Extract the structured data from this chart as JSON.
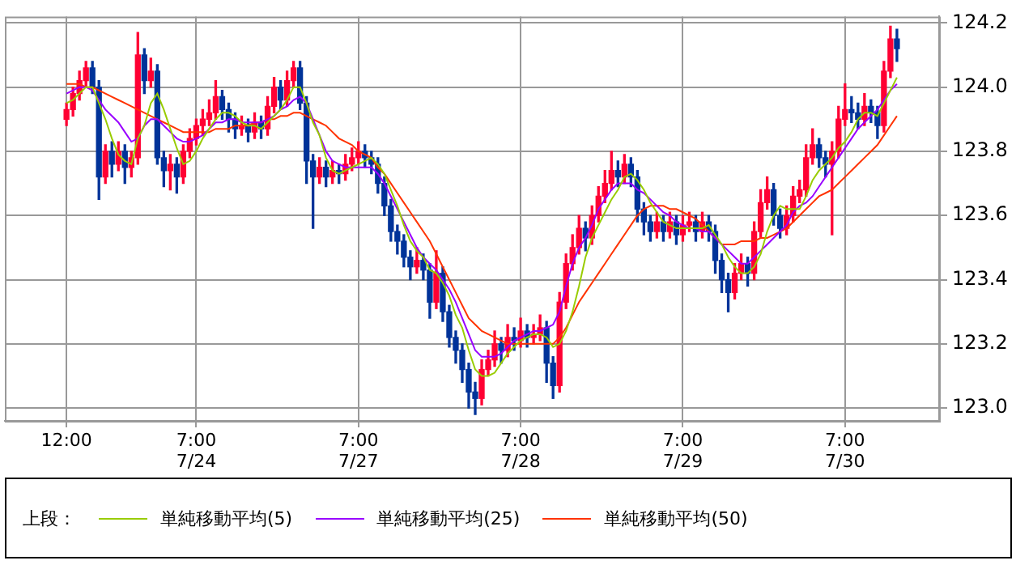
{
  "chart_data": {
    "type": "candlestick",
    "legend_title": "上段：",
    "legend": "bottom",
    "grid": true,
    "marker": "none",
    "categories": [
      null,
      null,
      null,
      null,
      null,
      null,
      null,
      null,
      null,
      "12:00",
      null,
      null,
      null,
      null,
      null,
      null,
      null,
      null,
      null,
      null,
      null,
      null,
      null,
      null,
      null,
      null,
      null,
      null,
      null,
      "7:00\n7/24",
      null,
      null,
      null,
      null,
      null,
      null,
      null,
      null,
      null,
      null,
      null,
      null,
      null,
      null,
      null,
      null,
      null,
      null,
      null,
      null,
      null,
      null,
      null,
      null,
      "7:00\n7/27",
      null,
      null,
      null,
      null,
      null,
      null,
      null,
      null,
      null,
      null,
      null,
      null,
      null,
      null,
      null,
      null,
      null,
      null,
      null,
      null,
      null,
      null,
      null,
      null,
      "7:00\n7/28",
      null,
      null,
      null,
      null,
      null,
      null,
      null,
      null,
      null,
      null,
      null,
      null,
      null,
      null,
      null,
      null,
      null,
      null,
      null,
      null,
      null,
      null,
      null,
      null,
      "7:00\n7/29",
      null,
      null,
      null,
      null,
      null,
      null,
      null,
      null,
      null,
      null,
      null,
      null,
      null,
      null,
      null,
      null,
      null,
      null,
      null,
      null,
      null,
      null,
      null,
      null,
      "7:00\n7/30",
      null,
      null,
      null,
      null,
      null,
      null,
      null,
      null,
      null,
      null,
      null,
      null,
      null,
      null
    ],
    "ylim": [
      122.96,
      124.22
    ],
    "yticks": [
      {
        "value": 123,
        "label": "123.0"
      },
      {
        "value": 123.2,
        "label": "123.2"
      },
      {
        "value": 123.4,
        "label": "123.4"
      },
      {
        "value": 123.6,
        "label": "123.6"
      },
      {
        "value": 123.8,
        "label": "123.8"
      },
      {
        "value": 124,
        "label": "124.0"
      },
      {
        "value": 124.2,
        "label": "124.2"
      }
    ],
    "ohlc": [
      null,
      null,
      null,
      null,
      null,
      null,
      null,
      null,
      null,
      [
        123.9,
        123.95,
        123.88,
        123.93
      ],
      [
        123.93,
        124.0,
        123.91,
        123.98
      ],
      [
        123.98,
        124.05,
        123.96,
        124.02
      ],
      [
        124.02,
        124.08,
        124.0,
        124.06
      ],
      [
        124.06,
        124.08,
        123.98,
        124.0
      ],
      [
        124.0,
        124.02,
        123.65,
        123.72
      ],
      [
        123.72,
        123.82,
        123.7,
        123.8
      ],
      [
        123.8,
        123.83,
        123.72,
        123.76
      ],
      [
        123.76,
        123.83,
        123.74,
        123.8
      ],
      [
        123.8,
        123.82,
        123.7,
        123.75
      ],
      [
        123.75,
        123.8,
        123.72,
        123.78
      ],
      [
        123.78,
        124.17,
        123.76,
        124.1
      ],
      [
        124.1,
        124.12,
        123.98,
        124.02
      ],
      [
        124.02,
        124.09,
        124.0,
        124.05
      ],
      [
        124.05,
        124.07,
        123.76,
        123.78
      ],
      [
        123.78,
        123.8,
        123.69,
        123.74
      ],
      [
        123.74,
        123.79,
        123.68,
        123.76
      ],
      [
        123.76,
        123.78,
        123.67,
        123.72
      ],
      [
        123.72,
        123.82,
        123.7,
        123.8
      ],
      [
        123.8,
        123.87,
        123.78,
        123.84
      ],
      [
        123.84,
        123.9,
        123.82,
        123.88
      ],
      [
        123.88,
        123.93,
        123.85,
        123.9
      ],
      [
        123.9,
        123.96,
        123.88,
        123.92
      ],
      [
        123.92,
        124.02,
        123.9,
        123.97
      ],
      [
        123.97,
        123.99,
        123.9,
        123.93
      ],
      [
        123.93,
        123.95,
        123.86,
        123.9
      ],
      [
        123.9,
        123.92,
        123.84,
        123.87
      ],
      [
        123.87,
        123.91,
        123.85,
        123.88
      ],
      [
        123.88,
        123.9,
        123.83,
        123.86
      ],
      [
        123.86,
        123.92,
        123.84,
        123.89
      ],
      [
        123.89,
        123.91,
        123.84,
        123.87
      ],
      [
        123.87,
        123.97,
        123.85,
        123.94
      ],
      [
        123.94,
        124.03,
        123.92,
        124.0
      ],
      [
        124.0,
        124.02,
        123.93,
        123.96
      ],
      [
        123.96,
        124.05,
        123.94,
        124.02
      ],
      [
        124.02,
        124.08,
        124.0,
        124.06
      ],
      [
        124.06,
        124.08,
        123.93,
        123.95
      ],
      [
        123.95,
        123.97,
        123.7,
        123.77
      ],
      [
        123.77,
        123.79,
        123.56,
        123.72
      ],
      [
        123.72,
        123.78,
        123.7,
        123.75
      ],
      [
        123.75,
        123.77,
        123.69,
        123.72
      ],
      [
        123.72,
        123.77,
        123.7,
        123.74
      ],
      [
        123.74,
        123.76,
        123.7,
        123.73
      ],
      [
        123.73,
        123.79,
        123.71,
        123.76
      ],
      [
        123.76,
        123.81,
        123.74,
        123.78
      ],
      [
        123.78,
        123.83,
        123.76,
        123.8
      ],
      [
        123.8,
        123.82,
        123.75,
        123.78
      ],
      [
        123.78,
        123.8,
        123.73,
        123.76
      ],
      [
        123.76,
        123.78,
        123.67,
        123.7
      ],
      [
        123.7,
        123.72,
        123.6,
        123.63
      ],
      [
        123.63,
        123.65,
        123.52,
        123.55
      ],
      [
        123.55,
        123.57,
        123.48,
        123.52
      ],
      [
        123.52,
        123.54,
        123.44,
        123.47
      ],
      [
        123.47,
        123.49,
        123.4,
        123.44
      ],
      [
        123.44,
        123.5,
        123.42,
        123.46
      ],
      [
        123.46,
        123.48,
        123.4,
        123.43
      ],
      [
        123.43,
        123.45,
        123.28,
        123.33
      ],
      [
        123.33,
        123.49,
        123.31,
        123.42
      ],
      [
        123.42,
        123.44,
        123.27,
        123.3
      ],
      [
        123.3,
        123.32,
        123.19,
        123.22
      ],
      [
        123.22,
        123.24,
        123.14,
        123.18
      ],
      [
        123.18,
        123.2,
        123.08,
        123.12
      ],
      [
        123.12,
        123.14,
        123.0,
        123.05
      ],
      [
        123.05,
        123.08,
        122.98,
        123.03
      ],
      [
        123.03,
        123.15,
        123.01,
        123.12
      ],
      [
        123.12,
        123.18,
        123.1,
        123.15
      ],
      [
        123.15,
        123.24,
        123.13,
        123.2
      ],
      [
        123.2,
        123.22,
        123.14,
        123.18
      ],
      [
        123.18,
        123.26,
        123.16,
        123.22
      ],
      [
        123.22,
        123.25,
        123.18,
        123.21
      ],
      [
        123.21,
        123.28,
        123.19,
        123.24
      ],
      [
        123.24,
        123.26,
        123.19,
        123.22
      ],
      [
        123.22,
        123.26,
        123.2,
        123.23
      ],
      [
        123.23,
        123.29,
        123.21,
        123.25
      ],
      [
        123.25,
        123.27,
        123.08,
        123.14
      ],
      [
        123.14,
        123.16,
        123.03,
        123.07
      ],
      [
        123.07,
        123.36,
        123.05,
        123.33
      ],
      [
        123.33,
        123.48,
        123.31,
        123.45
      ],
      [
        123.45,
        123.54,
        123.43,
        123.5
      ],
      [
        123.5,
        123.6,
        123.48,
        123.56
      ],
      [
        123.56,
        123.58,
        123.49,
        123.53
      ],
      [
        123.53,
        123.63,
        123.51,
        123.6
      ],
      [
        123.6,
        123.69,
        123.58,
        123.66
      ],
      [
        123.66,
        123.74,
        123.64,
        123.7
      ],
      [
        123.7,
        123.8,
        123.68,
        123.74
      ],
      [
        123.74,
        123.77,
        123.69,
        123.72
      ],
      [
        123.72,
        123.79,
        123.7,
        123.76
      ],
      [
        123.76,
        123.78,
        123.69,
        123.72
      ],
      [
        123.72,
        123.74,
        123.58,
        123.62
      ],
      [
        123.62,
        123.64,
        123.54,
        123.58
      ],
      [
        123.58,
        123.6,
        123.52,
        123.55
      ],
      [
        123.55,
        123.61,
        123.53,
        123.58
      ],
      [
        123.58,
        123.6,
        123.52,
        123.55
      ],
      [
        123.55,
        123.61,
        123.53,
        123.58
      ],
      [
        123.58,
        123.6,
        123.51,
        123.54
      ],
      [
        123.54,
        123.6,
        123.52,
        123.57
      ],
      [
        123.57,
        123.61,
        123.55,
        123.58
      ],
      [
        123.58,
        123.6,
        123.52,
        123.55
      ],
      [
        123.55,
        123.61,
        123.53,
        123.58
      ],
      [
        123.58,
        123.6,
        123.52,
        123.55
      ],
      [
        123.55,
        123.57,
        123.42,
        123.46
      ],
      [
        123.46,
        123.48,
        123.36,
        123.4
      ],
      [
        123.4,
        123.42,
        123.3,
        123.36
      ],
      [
        123.36,
        123.45,
        123.34,
        123.42
      ],
      [
        123.42,
        123.48,
        123.4,
        123.45
      ],
      [
        123.45,
        123.47,
        123.38,
        123.42
      ],
      [
        123.42,
        123.58,
        123.4,
        123.55
      ],
      [
        123.55,
        123.68,
        123.53,
        123.64
      ],
      [
        123.64,
        123.72,
        123.62,
        123.68
      ],
      [
        123.68,
        123.7,
        123.57,
        123.6
      ],
      [
        123.6,
        123.62,
        123.53,
        123.56
      ],
      [
        123.56,
        123.63,
        123.54,
        123.6
      ],
      [
        123.6,
        123.69,
        123.58,
        123.66
      ],
      [
        123.66,
        123.71,
        123.64,
        123.68
      ],
      [
        123.68,
        123.82,
        123.66,
        123.78
      ],
      [
        123.78,
        123.87,
        123.76,
        123.82
      ],
      [
        123.82,
        123.84,
        123.75,
        123.78
      ],
      [
        123.78,
        123.8,
        123.72,
        123.76
      ],
      [
        123.76,
        123.83,
        123.54,
        123.8
      ],
      [
        123.8,
        123.94,
        123.78,
        123.9
      ],
      [
        123.9,
        124.01,
        123.88,
        123.93
      ],
      [
        123.93,
        123.97,
        123.89,
        123.92
      ],
      [
        123.92,
        123.95,
        123.87,
        123.9
      ],
      [
        123.9,
        123.98,
        123.88,
        123.94
      ],
      [
        123.94,
        123.96,
        123.89,
        123.92
      ],
      [
        123.92,
        123.94,
        123.84,
        123.88
      ],
      [
        123.88,
        124.08,
        123.86,
        124.05
      ],
      [
        124.05,
        124.19,
        124.03,
        124.15
      ],
      [
        124.15,
        124.18,
        124.08,
        124.12
      ],
      null,
      null,
      null,
      null,
      null,
      null
    ],
    "colors": [
      null,
      null,
      null,
      null,
      null,
      null,
      null,
      null,
      null,
      "#ff0033",
      "#ff0033",
      "#ff0033",
      "#ff0033",
      "#003399",
      "#003399",
      "#ff0033",
      "#003399",
      "#ff0033",
      "#003399",
      "#ff0033",
      "#ff0033",
      "#003399",
      "#ff0033",
      "#003399",
      "#003399",
      "#ff0033",
      "#003399",
      "#ff0033",
      "#ff0033",
      "#ff0033",
      "#ff0033",
      "#ff0033",
      "#ff0033",
      "#003399",
      "#003399",
      "#003399",
      "#ff0033",
      "#003399",
      "#ff0033",
      "#003399",
      "#ff0033",
      "#ff0033",
      "#003399",
      "#ff0033",
      "#ff0033",
      "#003399",
      "#003399",
      "#003399",
      "#ff0033",
      "#003399",
      "#ff0033",
      "#003399",
      "#ff0033",
      "#ff0033",
      "#ff0033",
      "#003399",
      "#003399",
      "#003399",
      "#003399",
      "#003399",
      "#003399",
      "#003399",
      "#003399",
      "#ff0033",
      "#003399",
      "#003399",
      "#ff0033",
      "#003399",
      "#003399",
      "#003399",
      "#003399",
      "#003399",
      "#003399",
      "#ff0033",
      "#ff0033",
      "#ff0033",
      "#003399",
      "#ff0033",
      "#003399",
      "#ff0033",
      "#003399",
      "#ff0033",
      "#ff0033",
      "#003399",
      "#003399",
      "#ff0033",
      "#ff0033",
      "#ff0033",
      "#ff0033",
      "#003399",
      "#ff0033",
      "#ff0033",
      "#ff0033",
      "#ff0033",
      "#003399",
      "#ff0033",
      "#003399",
      "#003399",
      "#003399",
      "#003399",
      "#ff0033",
      "#003399",
      "#ff0033",
      "#003399",
      "#ff0033",
      "#ff0033",
      "#003399",
      "#ff0033",
      "#003399",
      "#003399",
      "#003399",
      "#003399",
      "#ff0033",
      "#ff0033",
      "#003399",
      "#ff0033",
      "#ff0033",
      "#ff0033",
      "#003399",
      "#003399",
      "#ff0033",
      "#ff0033",
      "#ff0033",
      "#ff0033",
      "#ff0033",
      "#003399",
      "#003399",
      "#ff0033",
      "#ff0033",
      "#ff0033",
      "#003399",
      "#003399",
      "#ff0033",
      "#003399",
      "#003399",
      "#ff0033",
      "#ff0033",
      "#003399",
      null,
      null,
      null,
      null,
      null,
      null
    ],
    "series": [
      {
        "name": "単純移動平均(5)",
        "type": "line",
        "color": "#99cc00",
        "values": [
          null,
          null,
          null,
          null,
          null,
          null,
          null,
          null,
          null,
          123.95,
          123.96,
          123.98,
          124.0,
          124.0,
          123.95,
          123.9,
          123.84,
          123.79,
          123.77,
          123.76,
          123.84,
          123.88,
          123.95,
          123.98,
          123.93,
          123.87,
          123.81,
          123.76,
          123.77,
          123.8,
          123.84,
          123.87,
          123.9,
          123.92,
          123.92,
          123.91,
          123.89,
          123.88,
          123.88,
          123.87,
          123.89,
          123.91,
          123.93,
          123.96,
          124.0,
          124.0,
          123.95,
          123.89,
          123.85,
          123.78,
          123.74,
          123.73,
          123.74,
          123.75,
          123.76,
          123.77,
          123.78,
          123.76,
          123.73,
          123.68,
          123.63,
          123.57,
          123.52,
          123.49,
          123.47,
          123.43,
          123.42,
          123.39,
          123.35,
          123.29,
          123.25,
          123.18,
          123.12,
          123.1,
          123.1,
          123.11,
          123.14,
          123.17,
          123.19,
          123.21,
          123.22,
          123.23,
          123.23,
          123.22,
          123.19,
          123.2,
          123.24,
          123.3,
          123.38,
          123.47,
          123.53,
          123.57,
          123.61,
          123.65,
          123.68,
          123.72,
          123.73,
          123.71,
          123.68,
          123.64,
          123.61,
          123.58,
          123.57,
          123.56,
          123.56,
          123.56,
          123.56,
          123.56,
          123.57,
          123.54,
          123.51,
          123.47,
          123.44,
          123.42,
          123.42,
          123.44,
          123.48,
          123.55,
          123.6,
          123.63,
          123.62,
          123.62,
          123.62,
          123.66,
          123.71,
          123.74,
          123.76,
          123.78,
          123.81,
          123.83,
          123.86,
          123.9,
          123.92,
          123.92,
          123.91,
          123.95,
          123.99,
          124.03,
          null,
          null,
          null,
          null,
          null,
          null
        ]
      },
      {
        "name": "単純移動平均(25)",
        "type": "line",
        "color": "#9900ff",
        "values": [
          null,
          null,
          null,
          null,
          null,
          null,
          null,
          null,
          null,
          123.98,
          123.99,
          124.0,
          124.0,
          123.99,
          123.96,
          123.93,
          123.91,
          123.89,
          123.86,
          123.83,
          123.84,
          123.88,
          123.9,
          123.9,
          123.88,
          123.86,
          123.84,
          123.83,
          123.83,
          123.84,
          123.85,
          123.87,
          123.89,
          123.89,
          123.9,
          123.9,
          123.89,
          123.89,
          123.89,
          123.89,
          123.9,
          123.91,
          123.93,
          123.94,
          123.96,
          123.97,
          123.95,
          123.9,
          123.85,
          123.8,
          123.77,
          123.76,
          123.75,
          123.75,
          123.75,
          123.75,
          123.75,
          123.73,
          123.7,
          123.66,
          123.62,
          123.58,
          123.54,
          123.5,
          123.47,
          123.45,
          123.43,
          123.4,
          123.37,
          123.33,
          123.28,
          123.23,
          123.18,
          123.16,
          123.16,
          123.16,
          123.17,
          123.19,
          123.21,
          123.22,
          123.23,
          123.24,
          123.24,
          123.25,
          123.26,
          123.3,
          123.38,
          123.45,
          123.5,
          123.53,
          123.57,
          123.62,
          123.65,
          123.68,
          123.7,
          123.7,
          123.7,
          123.68,
          123.67,
          123.65,
          123.63,
          123.61,
          123.6,
          123.58,
          123.57,
          123.56,
          123.56,
          123.55,
          123.55,
          123.53,
          123.51,
          123.49,
          123.47,
          123.45,
          123.45,
          123.47,
          123.49,
          123.51,
          123.53,
          123.55,
          123.57,
          123.61,
          123.63,
          123.64,
          123.66,
          123.69,
          123.72,
          123.75,
          123.78,
          123.81,
          123.84,
          123.87,
          123.89,
          123.91,
          123.93,
          123.96,
          123.99,
          124.01,
          null,
          null,
          null,
          null,
          null,
          null
        ]
      },
      {
        "name": "単純移動平均(50)",
        "type": "line",
        "color": "#ff3300",
        "values": [
          null,
          null,
          null,
          null,
          null,
          null,
          null,
          null,
          null,
          124.01,
          124.01,
          124.01,
          124.0,
          124.0,
          123.99,
          123.98,
          123.97,
          123.96,
          123.95,
          123.94,
          123.93,
          123.92,
          123.91,
          123.9,
          123.89,
          123.88,
          123.87,
          123.86,
          123.86,
          123.86,
          123.86,
          123.86,
          123.87,
          123.87,
          123.87,
          123.88,
          123.88,
          123.88,
          123.89,
          123.89,
          123.9,
          123.9,
          123.91,
          123.91,
          123.92,
          123.92,
          123.91,
          123.9,
          123.89,
          123.88,
          123.86,
          123.84,
          123.83,
          123.82,
          123.8,
          123.79,
          123.78,
          123.75,
          123.73,
          123.7,
          123.67,
          123.64,
          123.61,
          123.58,
          123.55,
          123.52,
          123.48,
          123.44,
          123.4,
          123.36,
          123.32,
          123.28,
          123.26,
          123.24,
          123.23,
          123.22,
          123.21,
          123.2,
          123.2,
          123.2,
          123.2,
          123.2,
          123.2,
          123.2,
          123.2,
          123.22,
          123.25,
          123.29,
          123.33,
          123.36,
          123.39,
          123.42,
          123.45,
          123.48,
          123.51,
          123.54,
          123.57,
          123.6,
          123.62,
          123.63,
          123.63,
          123.63,
          123.62,
          123.62,
          123.61,
          123.6,
          123.59,
          123.57,
          123.55,
          123.53,
          123.51,
          123.51,
          123.51,
          123.52,
          123.52,
          123.52,
          123.53,
          123.53,
          123.54,
          123.55,
          123.56,
          123.58,
          123.6,
          123.62,
          123.64,
          123.66,
          123.67,
          123.68,
          123.7,
          123.72,
          123.74,
          123.76,
          123.78,
          123.8,
          123.82,
          123.85,
          123.88,
          123.91,
          null,
          null,
          null,
          null,
          null,
          null
        ]
      }
    ]
  }
}
